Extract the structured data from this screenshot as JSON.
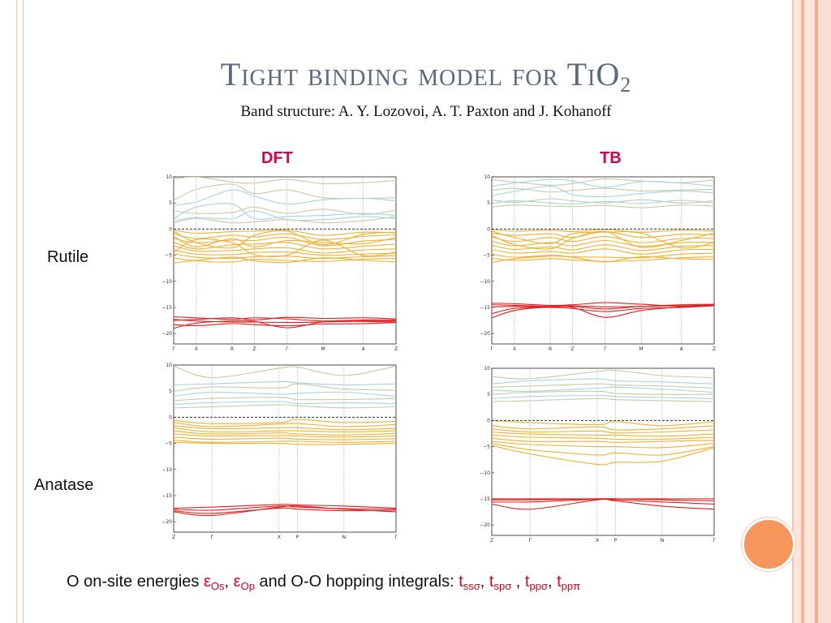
{
  "slide": {
    "title_main": "Tight binding model for TiO",
    "title_sub": "2",
    "subtitle": "Band structure: A. Y. Lozovoi, A. T. Paxton and J. Kohanoff",
    "col_dft": "DFT",
    "col_tb": "TB",
    "row_rutile": "Rutile",
    "row_anatase": "Anatase",
    "footer": {
      "prefix": "O on-site energies ",
      "eps": "ε",
      "os": "Os",
      "comma1": ", ",
      "op": "Op",
      "middle": " and O-O hopping integrals: ",
      "t": "t",
      "sss": "ssσ",
      "sps": "spσ",
      "pps": "ppσ",
      "ppp": "ppπ",
      "sep": ", ",
      "sep2": " , "
    }
  },
  "colors": {
    "title": "#5a6a7e",
    "heading": "#d2004f",
    "conduction_a": "#c9c8a8",
    "conduction_b": "#a9d3d9",
    "valence": "#f0b030",
    "deep": "#e02020",
    "fermi": "#333333"
  },
  "chart_data": [
    {
      "type": "line",
      "id": "rutile-dft",
      "ylim": [
        -22,
        10
      ],
      "yticks": [
        10,
        5,
        0,
        -5,
        -10,
        -15,
        -20
      ],
      "kpoints": [
        "Γ",
        "X",
        "R",
        "Z",
        "Γ",
        "M",
        "A",
        "Z"
      ],
      "kpos": [
        0,
        0.102,
        0.263,
        0.363,
        0.51,
        0.672,
        0.853,
        1.0
      ],
      "groups": {
        "conduction": [
          [
            5.5,
            7.6,
            8.6,
            6.8,
            7.5,
            6.0,
            5.9,
            6.0
          ],
          [
            4.5,
            5.2,
            7.5,
            6.3,
            4.8,
            5.6,
            5.9,
            5.4
          ],
          [
            3.5,
            3.0,
            3.2,
            4.2,
            3.0,
            3.8,
            2.8,
            3.6
          ],
          [
            1.6,
            2.2,
            2.0,
            3.5,
            1.8,
            1.8,
            2.4,
            2.0
          ],
          [
            1.2,
            2.0,
            1.2,
            1.4,
            1.8,
            1.2,
            1.6,
            2.4
          ],
          [
            2.0,
            4.2,
            4.8,
            2.0,
            2.4,
            2.6,
            3.0,
            2.6
          ],
          [
            9.6,
            10.0,
            9.0,
            8.8,
            9.5,
            8.7,
            8.9,
            9.3
          ]
        ],
        "valence": [
          [
            -0.2,
            -0.8,
            -0.5,
            -0.4,
            -0.2,
            -1.2,
            -0.6,
            -0.7
          ],
          [
            -0.9,
            -1.8,
            -1.2,
            -1.5,
            -0.9,
            -2.0,
            -1.4,
            -1.1
          ],
          [
            -1.8,
            -2.6,
            -2.1,
            -2.2,
            -1.6,
            -3.2,
            -2.3,
            -2.0
          ],
          [
            -2.5,
            -3.8,
            -3.0,
            -2.9,
            -2.6,
            -3.8,
            -3.3,
            -2.9
          ],
          [
            -3.2,
            -4.2,
            -4.1,
            -3.8,
            -3.6,
            -4.6,
            -4.0,
            -3.8
          ],
          [
            -4.0,
            -4.8,
            -4.9,
            -4.5,
            -4.4,
            -5.0,
            -4.8,
            -4.6
          ],
          [
            -4.7,
            -5.4,
            -5.6,
            -5.3,
            -5.2,
            -5.6,
            -5.3,
            -5.1
          ],
          [
            -5.5,
            -6.1,
            -6.3,
            -5.8,
            -6.0,
            -6.2,
            -5.8,
            -5.6
          ],
          [
            -6.5,
            -6.0,
            -5.4,
            -6.1,
            -6.4,
            -5.5,
            -6.0,
            -6.3
          ],
          [
            -1.4,
            -3.4,
            -1.8,
            -3.4,
            -2.2,
            -2.6,
            -2.8,
            -1.6
          ],
          [
            -0.4,
            -2.6,
            -3.6,
            -1.2,
            -0.4,
            -3.0,
            -1.0,
            -0.6
          ],
          [
            -4.4,
            -2.0,
            -2.6,
            -4.9,
            -5.0,
            -2.1,
            -5.1,
            -4.4
          ]
        ],
        "deep": [
          [
            -16.8,
            -17.0,
            -17.3,
            -17.0,
            -17.2,
            -17.6,
            -17.4,
            -17.4
          ],
          [
            -17.3,
            -17.6,
            -17.8,
            -17.8,
            -17.9,
            -17.8,
            -17.6,
            -17.6
          ],
          [
            -17.5,
            -17.3,
            -17.0,
            -17.4,
            -16.9,
            -17.1,
            -17.0,
            -17.2
          ],
          [
            -19.0,
            -18.0,
            -17.6,
            -17.7,
            -18.9,
            -17.8,
            -17.7,
            -17.8
          ],
          [
            -18.3,
            -18.5,
            -18.1,
            -18.3,
            -18.5,
            -18.2,
            -18.1,
            -17.9
          ]
        ]
      }
    },
    {
      "type": "line",
      "id": "rutile-tb",
      "ylim": [
        -22,
        10
      ],
      "yticks": [
        10,
        5,
        0,
        -5,
        -10,
        -15,
        -20
      ],
      "kpoints": [
        "Γ",
        "X",
        "R",
        "Z",
        "Γ",
        "M",
        "A",
        "Z"
      ],
      "kpos": [
        0,
        0.102,
        0.263,
        0.363,
        0.51,
        0.672,
        0.853,
        1.0
      ],
      "groups": {
        "conduction": [
          [
            9.5,
            9.0,
            8.4,
            8.7,
            9.6,
            9.2,
            8.9,
            9.4
          ],
          [
            8.2,
            8.8,
            9.5,
            9.2,
            8.0,
            9.1,
            8.8,
            8.2
          ],
          [
            7.4,
            7.8,
            7.1,
            7.4,
            7.8,
            7.3,
            7.5,
            7.6
          ],
          [
            6.4,
            7.2,
            8.2,
            6.6,
            6.2,
            6.8,
            7.3,
            6.9
          ],
          [
            5.6,
            5.1,
            5.8,
            5.4,
            5.0,
            5.6,
            5.0,
            5.4
          ],
          [
            4.9,
            5.4,
            5.0,
            4.8,
            5.3,
            4.9,
            5.5,
            5.0
          ],
          [
            4.2,
            4.6,
            4.4,
            4.3,
            4.5,
            4.1,
            4.6,
            4.4
          ]
        ],
        "valence": [
          [
            -0.1,
            -0.4,
            -0.2,
            -0.5,
            -0.1,
            -0.6,
            -0.2,
            -0.4
          ],
          [
            -0.8,
            -1.2,
            -0.9,
            -1.6,
            -0.5,
            -1.6,
            -1.0,
            -1.1
          ],
          [
            -1.5,
            -2.4,
            -1.6,
            -2.4,
            -1.4,
            -2.6,
            -1.8,
            -1.8
          ],
          [
            -2.3,
            -3.2,
            -2.6,
            -3.2,
            -2.2,
            -3.3,
            -2.6,
            -2.5
          ],
          [
            -3.1,
            -3.9,
            -3.4,
            -4.0,
            -3.0,
            -4.1,
            -3.3,
            -3.2
          ],
          [
            -3.9,
            -4.6,
            -4.3,
            -4.6,
            -3.8,
            -4.8,
            -4.0,
            -3.9
          ],
          [
            -4.8,
            -5.4,
            -5.0,
            -5.3,
            -5.4,
            -5.5,
            -4.8,
            -4.6
          ],
          [
            -5.6,
            -6.0,
            -5.7,
            -5.9,
            -6.2,
            -6.0,
            -5.5,
            -5.3
          ],
          [
            -6.4,
            -5.7,
            -5.2,
            -5.4,
            -6.3,
            -5.3,
            -5.7,
            -5.8
          ],
          [
            -1.2,
            -3.0,
            -3.8,
            -1.8,
            -0.5,
            -3.5,
            -2.2,
            -0.8
          ],
          [
            -0.4,
            -1.6,
            -2.8,
            -0.9,
            -0.6,
            -0.8,
            -3.6,
            -2.6
          ]
        ],
        "deep": [
          [
            -14.2,
            -14.3,
            -14.6,
            -14.5,
            -14.1,
            -14.4,
            -14.8,
            -14.6
          ],
          [
            -14.5,
            -14.6,
            -14.8,
            -14.7,
            -14.9,
            -14.8,
            -14.5,
            -14.4
          ],
          [
            -14.9,
            -14.8,
            -14.9,
            -14.8,
            -15.3,
            -14.8,
            -14.7,
            -14.5
          ],
          [
            -17.0,
            -15.6,
            -14.9,
            -15.0,
            -16.9,
            -15.6,
            -14.9,
            -14.6
          ],
          [
            -16.2,
            -15.2,
            -15.0,
            -15.2,
            -15.8,
            -15.2,
            -15.0,
            -14.7
          ]
        ]
      }
    },
    {
      "type": "line",
      "id": "anatase-dft",
      "ylim": [
        -22,
        10
      ],
      "yticks": [
        10,
        5,
        0,
        -5,
        -10,
        -15,
        -20
      ],
      "kpoints": [
        "Z",
        "Γ",
        "X",
        "P",
        "N",
        "Γ"
      ],
      "kpos": [
        0,
        0.172,
        0.474,
        0.557,
        0.766,
        1.0
      ],
      "groups": {
        "conduction": [
          [
            9.8,
            7.6,
            9.4,
            9.6,
            8.0,
            9.8
          ],
          [
            6.2,
            6.4,
            6.8,
            6.6,
            6.2,
            6.4
          ],
          [
            5.0,
            5.8,
            5.6,
            6.4,
            5.4,
            5.2
          ],
          [
            4.0,
            4.8,
            4.4,
            4.6,
            4.8,
            4.0
          ],
          [
            3.2,
            3.6,
            3.8,
            3.4,
            3.4,
            3.6
          ],
          [
            2.4,
            2.8,
            3.0,
            2.6,
            2.8,
            2.6
          ],
          [
            1.8,
            2.0,
            2.4,
            2.2,
            1.8,
            2.0
          ]
        ],
        "valence": [
          [
            -0.6,
            -1.2,
            -1.0,
            -0.4,
            -1.0,
            -0.8
          ],
          [
            -1.0,
            -1.8,
            -1.3,
            -1.2,
            -1.8,
            -1.4
          ],
          [
            -1.6,
            -2.2,
            -2.0,
            -2.0,
            -2.4,
            -2.1
          ],
          [
            -2.0,
            -2.8,
            -2.6,
            -2.6,
            -2.8,
            -2.6
          ],
          [
            -2.6,
            -3.2,
            -3.0,
            -3.2,
            -3.4,
            -3.1
          ],
          [
            -3.2,
            -3.6,
            -3.5,
            -3.6,
            -3.8,
            -3.6
          ],
          [
            -3.8,
            -4.2,
            -4.0,
            -4.2,
            -4.3,
            -4.1
          ],
          [
            -4.4,
            -4.8,
            -4.6,
            -4.6,
            -4.8,
            -4.6
          ],
          [
            -4.8,
            -5.0,
            -5.0,
            -5.2,
            -5.2,
            -5.0
          ]
        ],
        "deep": [
          [
            -17.4,
            -17.2,
            -16.7,
            -16.8,
            -17.0,
            -17.4
          ],
          [
            -17.6,
            -17.8,
            -17.0,
            -17.2,
            -17.5,
            -17.6
          ],
          [
            -17.9,
            -18.4,
            -17.4,
            -17.6,
            -17.9,
            -17.8
          ],
          [
            -18.1,
            -18.8,
            -17.2,
            -17.0,
            -17.6,
            -18.1
          ]
        ]
      }
    },
    {
      "type": "line",
      "id": "anatase-tb",
      "ylim": [
        -22,
        10
      ],
      "yticks": [
        10,
        5,
        0,
        -5,
        -10,
        -15,
        -20
      ],
      "kpoints": [
        "Z",
        "Γ",
        "X",
        "P",
        "N",
        "Γ"
      ],
      "kpos": [
        0,
        0.172,
        0.474,
        0.557,
        0.766,
        1.0
      ],
      "groups": {
        "conduction": [
          [
            8.4,
            8.0,
            9.4,
            9.6,
            8.6,
            8.2
          ],
          [
            7.0,
            7.6,
            8.0,
            7.6,
            7.4,
            7.0
          ],
          [
            6.4,
            6.6,
            7.0,
            6.8,
            6.6,
            6.2
          ],
          [
            5.8,
            5.6,
            6.2,
            6.4,
            6.0,
            5.4
          ],
          [
            5.0,
            5.4,
            5.6,
            5.2,
            5.0,
            5.0
          ],
          [
            4.2,
            4.6,
            4.8,
            4.6,
            4.4,
            4.2
          ],
          [
            3.6,
            3.8,
            4.2,
            4.0,
            3.8,
            3.6
          ]
        ],
        "valence": [
          [
            0.0,
            -0.4,
            -0.8,
            -0.2,
            -1.0,
            -0.2
          ],
          [
            -1.0,
            -1.6,
            -1.2,
            -1.8,
            -1.6,
            -1.0
          ],
          [
            -1.6,
            -2.2,
            -2.0,
            -2.4,
            -2.2,
            -1.8
          ],
          [
            -2.2,
            -2.6,
            -2.8,
            -2.8,
            -3.0,
            -2.6
          ],
          [
            -2.8,
            -3.2,
            -3.4,
            -3.6,
            -3.6,
            -3.2
          ],
          [
            -3.4,
            -4.0,
            -4.0,
            -4.2,
            -4.0,
            -3.8
          ],
          [
            -4.0,
            -4.6,
            -5.0,
            -5.0,
            -5.2,
            -4.4
          ],
          [
            -4.4,
            -5.6,
            -6.6,
            -6.2,
            -6.6,
            -5.0
          ],
          [
            -4.8,
            -6.4,
            -8.4,
            -8.0,
            -7.8,
            -5.2
          ]
        ],
        "deep": [
          [
            -15.0,
            -15.0,
            -15.0,
            -15.0,
            -15.0,
            -15.0
          ],
          [
            -15.2,
            -15.2,
            -15.0,
            -15.0,
            -15.2,
            -15.4
          ],
          [
            -15.6,
            -15.6,
            -15.1,
            -15.2,
            -15.6,
            -16.0
          ],
          [
            -16.0,
            -17.0,
            -15.2,
            -15.4,
            -16.4,
            -17.0
          ]
        ]
      }
    }
  ]
}
